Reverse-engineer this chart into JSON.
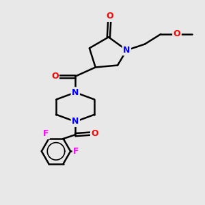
{
  "background_color": "#e8e8e8",
  "bond_color": "#000000",
  "atom_colors": {
    "O": "#ff0000",
    "N": "#0000ff",
    "F": "#ff00ff",
    "C": "#000000"
  }
}
